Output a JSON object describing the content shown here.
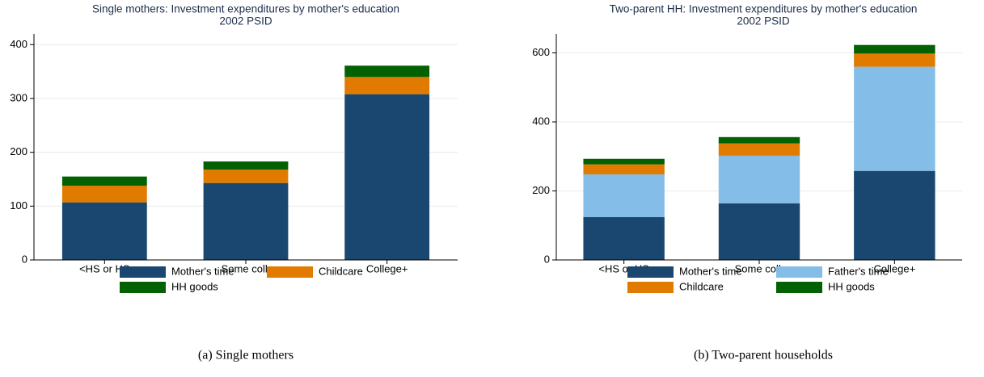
{
  "chart_data": [
    {
      "type": "bar",
      "stacked": true,
      "grid": true,
      "title": "Single mothers: Investment expenditures by mother's education",
      "subtitle": "2002 PSID",
      "caption": "(a) Single mothers",
      "categories": [
        "<HS or HS",
        "Some coll.",
        "College+"
      ],
      "series": [
        {
          "name": "Mother's time",
          "color": "#1a476f",
          "values": [
            107,
            143,
            308
          ]
        },
        {
          "name": "Childcare",
          "color": "#e07b00",
          "values": [
            31,
            25,
            32
          ]
        },
        {
          "name": "HH goods",
          "color": "#036003",
          "values": [
            17,
            15,
            21
          ]
        }
      ],
      "ylim": [
        0,
        420
      ],
      "yticks": [
        0,
        100,
        200,
        300,
        400
      ]
    },
    {
      "type": "bar",
      "stacked": true,
      "grid": true,
      "title": "Two-parent HH: Investment expenditures by mother's education",
      "subtitle": "2002 PSID",
      "caption": "(b) Two-parent households",
      "categories": [
        "<HS or HS",
        "Some coll.",
        "College+"
      ],
      "series": [
        {
          "name": "Mother's time",
          "color": "#1a476f",
          "values": [
            124,
            164,
            258
          ]
        },
        {
          "name": "Father's time",
          "color": "#83bde8",
          "values": [
            124,
            138,
            302
          ]
        },
        {
          "name": "Childcare",
          "color": "#e07b00",
          "values": [
            29,
            36,
            38
          ]
        },
        {
          "name": "HH goods",
          "color": "#036003",
          "values": [
            16,
            18,
            25
          ]
        }
      ],
      "ylim": [
        0,
        655
      ],
      "yticks": [
        0,
        200,
        400,
        600
      ]
    }
  ]
}
